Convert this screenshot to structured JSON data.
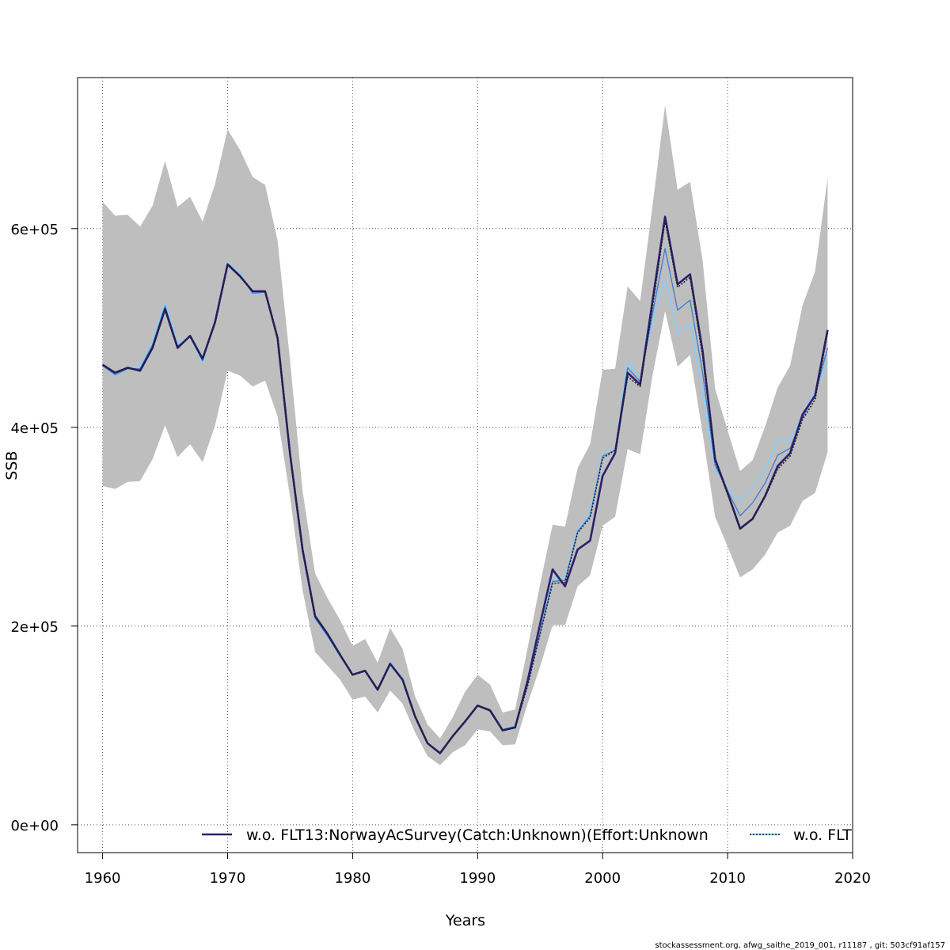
{
  "footer": "stockassessment.org, afwg_saithe_2019_001, r11187 , git: 503cf91af157",
  "chart_data": {
    "type": "line",
    "title": "",
    "xlabel": "Years",
    "ylabel": "SSB",
    "xlim": [
      1958,
      2020
    ],
    "ylim": [
      -28000,
      752000
    ],
    "grid": true,
    "legend_position": "bottom",
    "x_ticks": [
      1960,
      1970,
      1980,
      1990,
      2000,
      2010,
      2020
    ],
    "x_tick_labels": [
      "1960",
      "1970",
      "1980",
      "1990",
      "2000",
      "2010",
      "2020"
    ],
    "y_ticks": [
      0,
      200000,
      400000,
      600000
    ],
    "y_tick_labels": [
      "0e+00",
      "2e+05",
      "4e+05",
      "6e+05"
    ],
    "x": [
      1960,
      1961,
      1962,
      1963,
      1964,
      1965,
      1966,
      1967,
      1968,
      1969,
      1970,
      1971,
      1972,
      1973,
      1974,
      1975,
      1976,
      1977,
      1978,
      1979,
      1980,
      1981,
      1982,
      1983,
      1984,
      1985,
      1986,
      1987,
      1988,
      1989,
      1990,
      1991,
      1992,
      1993,
      1994,
      1995,
      1996,
      1997,
      1998,
      1999,
      2000,
      2001,
      2002,
      2003,
      2004,
      2005,
      2006,
      2007,
      2008,
      2009,
      2010,
      2011,
      2012,
      2013,
      2014,
      2015,
      2016,
      2017,
      2018
    ],
    "confidence_band": {
      "color": "#bebebe",
      "lower": [
        341000,
        338000,
        345000,
        346000,
        368000,
        402000,
        370000,
        383000,
        365000,
        402000,
        457000,
        452000,
        441000,
        447000,
        411000,
        330000,
        236000,
        174000,
        160000,
        146000,
        126000,
        129000,
        113000,
        135000,
        122000,
        93000,
        69000,
        60000,
        73000,
        80000,
        96000,
        94000,
        80000,
        81000,
        122000,
        159000,
        201000,
        201000,
        240000,
        251000,
        301000,
        310000,
        378000,
        373000,
        453000,
        517000,
        461000,
        473000,
        394000,
        310000,
        280000,
        249000,
        257000,
        272000,
        294000,
        301000,
        326000,
        334000,
        375000
      ],
      "upper": [
        627000,
        613000,
        614000,
        602000,
        623000,
        668000,
        622000,
        632000,
        607000,
        645000,
        700000,
        679000,
        652000,
        644000,
        588000,
        467000,
        336000,
        253000,
        228000,
        206000,
        180000,
        187000,
        163000,
        198000,
        177000,
        129000,
        101000,
        87000,
        108000,
        134000,
        151000,
        141000,
        113000,
        116000,
        178000,
        242000,
        302000,
        300000,
        359000,
        383000,
        458000,
        459000,
        542000,
        527000,
        624000,
        724000,
        639000,
        647000,
        568000,
        439000,
        397000,
        356000,
        367000,
        401000,
        440000,
        462000,
        523000,
        557000,
        651000
      ]
    },
    "series": [
      {
        "name": "w.o. FLT13:NorwayAcSurvey(Catch:Unknown)(Effort:Unknown",
        "color": "#2d1e6e",
        "dash": "solid",
        "values": [
          463000,
          455000,
          460000,
          457000,
          480000,
          519000,
          480000,
          492000,
          469000,
          506000,
          564000,
          552000,
          537000,
          537000,
          490000,
          373000,
          277000,
          210000,
          192000,
          171000,
          151000,
          155000,
          136000,
          162000,
          146000,
          109000,
          82000,
          72000,
          89000,
          104000,
          120000,
          115000,
          95000,
          98000,
          145000,
          202000,
          257000,
          240000,
          277000,
          286000,
          351000,
          374000,
          455000,
          443000,
          528000,
          612000,
          544000,
          554000,
          477000,
          368000,
          334000,
          298000,
          308000,
          331000,
          361000,
          374000,
          413000,
          432000,
          498000
        ]
      },
      {
        "name": "w.o. FLT",
        "color": "#1e1e1e",
        "dash": "dotted",
        "values": [
          463000,
          455000,
          460000,
          457000,
          480000,
          519000,
          480000,
          492000,
          469000,
          506000,
          564000,
          552000,
          537000,
          537000,
          490000,
          373000,
          277000,
          210000,
          192000,
          171000,
          151000,
          155000,
          136000,
          162000,
          146000,
          109000,
          82000,
          72000,
          89000,
          104000,
          120000,
          115000,
          95000,
          98000,
          140000,
          192000,
          243000,
          244000,
          294000,
          309000,
          369000,
          377000,
          451000,
          441000,
          522000,
          608000,
          541000,
          551000,
          472000,
          366000,
          333000,
          298000,
          308000,
          330000,
          358000,
          371000,
          408000,
          428000,
          495000
        ]
      },
      {
        "name": "",
        "color": "#87cefa",
        "dash": "solid",
        "values": [
          462000,
          452000,
          459000,
          461000,
          486000,
          526000,
          484000,
          491000,
          465000,
          509000,
          566000,
          555000,
          534000,
          536000,
          490000,
          370000,
          273000,
          207000,
          189000,
          169000,
          152000,
          155000,
          136000,
          164000,
          148000,
          110000,
          82000,
          73000,
          89000,
          104000,
          120000,
          116000,
          96000,
          100000,
          143000,
          194000,
          247000,
          249000,
          297000,
          314000,
          373000,
          378000,
          466000,
          450000,
          509000,
          552000,
          494000,
          505000,
          434000,
          358000,
          338000,
          325000,
          340000,
          358000,
          387000,
          387000,
          413000,
          437000,
          466000
        ]
      },
      {
        "name": "",
        "color": "#3a7bd5",
        "dash": "solid",
        "values": [
          462000,
          453000,
          459000,
          459000,
          483000,
          522000,
          482000,
          491000,
          467000,
          507000,
          565000,
          553000,
          535000,
          536000,
          490000,
          371000,
          275000,
          208000,
          190000,
          170000,
          151000,
          155000,
          136000,
          163000,
          147000,
          110000,
          82000,
          73000,
          89000,
          104000,
          120000,
          116000,
          96000,
          99000,
          141000,
          193000,
          245000,
          246000,
          295000,
          311000,
          371000,
          377000,
          460000,
          446000,
          515000,
          580000,
          518000,
          528000,
          455000,
          362000,
          336000,
          311000,
          324000,
          344000,
          372000,
          379000,
          410000,
          433000,
          480000
        ]
      }
    ],
    "legend": [
      {
        "label": "w.o. FLT13:NorwayAcSurvey(Catch:Unknown)(Effort:Unknown",
        "color": "#2d1e6e",
        "dash": "solid"
      },
      {
        "label": "w.o. FLT",
        "color": "#87cefa",
        "dash": "dotted"
      }
    ]
  }
}
